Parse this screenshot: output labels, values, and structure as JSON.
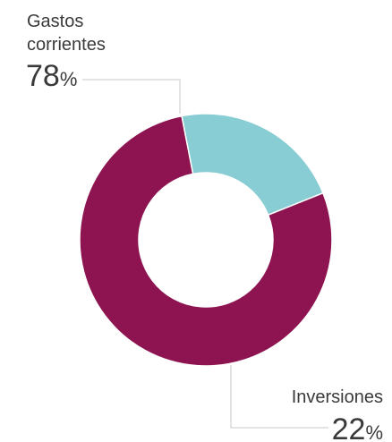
{
  "chart_data": {
    "type": "pie",
    "subtype": "donut",
    "title": "",
    "slices": [
      {
        "label_lines": [
          "Gastos",
          "corrientes"
        ],
        "value": 78,
        "unit": "%",
        "color": "#8e1451"
      },
      {
        "label_lines": [
          "Inversiones"
        ],
        "value": 22,
        "unit": "%",
        "color": "#88cdd3"
      }
    ],
    "start_angle_deg": 101,
    "direction": "counterclockwise",
    "legend": "none",
    "leader_line_color": "#c8c8c8",
    "slice_border_color": "#ffffff"
  }
}
